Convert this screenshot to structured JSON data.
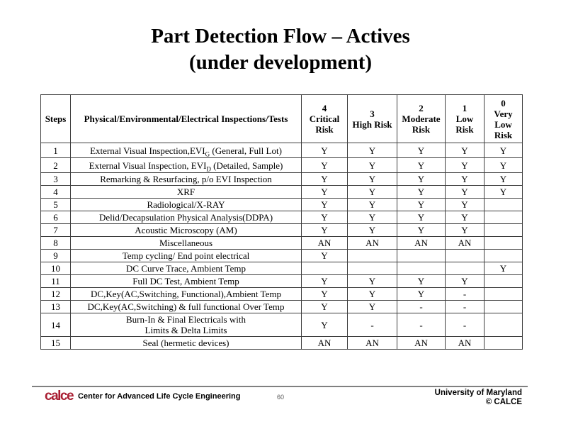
{
  "title": {
    "line1": "Part Detection Flow – Actives",
    "line2": "(under development)"
  },
  "colors": {
    "logo_red": "#A91E32",
    "table_border": "#3d3d3d",
    "footer_divider": "#808080"
  },
  "table": {
    "headers": {
      "steps": "Steps",
      "description": "Physical/Environmental/Electrical Inspections/Tests"
    },
    "risk_columns": [
      {
        "num": "4",
        "label": "Critical Risk"
      },
      {
        "num": "3",
        "label": "High Risk"
      },
      {
        "num": "2",
        "label": "Moderate Risk"
      },
      {
        "num": "1",
        "label": "Low Risk"
      },
      {
        "num": "0",
        "label": "Very Low Risk"
      }
    ],
    "rows": [
      {
        "step": "1",
        "pre": "External Visual Inspection,EVI",
        "sub": "G",
        "post": " (General, Full Lot)",
        "line2": "",
        "values": [
          "Y",
          "Y",
          "Y",
          "Y",
          "Y"
        ]
      },
      {
        "step": "2",
        "pre": "External Visual Inspection, EVI",
        "sub": "D",
        "post": " (Detailed, Sample)",
        "line2": "",
        "values": [
          "Y",
          "Y",
          "Y",
          "Y",
          "Y"
        ]
      },
      {
        "step": "3",
        "pre": "Remarking & Resurfacing, p/o EVI Inspection",
        "sub": "",
        "post": "",
        "line2": "",
        "values": [
          "Y",
          "Y",
          "Y",
          "Y",
          "Y"
        ]
      },
      {
        "step": "4",
        "pre": "XRF",
        "sub": "",
        "post": "",
        "line2": "",
        "values": [
          "Y",
          "Y",
          "Y",
          "Y",
          "Y"
        ]
      },
      {
        "step": "5",
        "pre": "Radiological/X-RAY",
        "sub": "",
        "post": "",
        "line2": "",
        "values": [
          "Y",
          "Y",
          "Y",
          "Y",
          ""
        ]
      },
      {
        "step": "6",
        "pre": "Delid/Decapsulation Physical Analysis(DDPA)",
        "sub": "",
        "post": "",
        "line2": "",
        "values": [
          "Y",
          "Y",
          "Y",
          "Y",
          ""
        ]
      },
      {
        "step": "7",
        "pre": "Acoustic Microscopy (AM)",
        "sub": "",
        "post": "",
        "line2": "",
        "values": [
          "Y",
          "Y",
          "Y",
          "Y",
          ""
        ]
      },
      {
        "step": "8",
        "pre": "Miscellaneous",
        "sub": "",
        "post": "",
        "line2": "",
        "values": [
          "AN",
          "AN",
          "AN",
          "AN",
          ""
        ]
      },
      {
        "step": "9",
        "pre": "Temp cycling/ End point electrical",
        "sub": "",
        "post": "",
        "line2": "",
        "values": [
          "Y",
          "",
          "",
          "",
          ""
        ]
      },
      {
        "step": "10",
        "pre": "DC Curve Trace, Ambient Temp",
        "sub": "",
        "post": "",
        "line2": "",
        "values": [
          "",
          "",
          "",
          "",
          "Y"
        ]
      },
      {
        "step": "11",
        "pre": "Full DC Test, Ambient Temp",
        "sub": "",
        "post": "",
        "line2": "",
        "values": [
          "Y",
          "Y",
          "Y",
          "Y",
          ""
        ]
      },
      {
        "step": "12",
        "pre": "DC,Key(AC,Switching, Functional),Ambient Temp",
        "sub": "",
        "post": "",
        "line2": "",
        "values": [
          "Y",
          "Y",
          "Y",
          "-",
          ""
        ]
      },
      {
        "step": "13",
        "pre": "DC,Key(AC,Switching) & full functional  Over Temp",
        "sub": "",
        "post": "",
        "line2": "",
        "values": [
          "Y",
          "Y",
          "-",
          "-",
          ""
        ]
      },
      {
        "step": "14",
        "pre": "Burn-In & Final Electricals with",
        "sub": "",
        "post": "",
        "line2": "Limits & Delta Limits",
        "values": [
          "Y",
          "-",
          "-",
          "-",
          ""
        ]
      },
      {
        "step": "15",
        "pre": "Seal (hermetic devices)",
        "sub": "",
        "post": "",
        "line2": "",
        "values": [
          "AN",
          "AN",
          "AN",
          "AN",
          ""
        ]
      }
    ]
  },
  "footer": {
    "logo_text": "calce",
    "left_text": "Center for Advanced Life Cycle Engineering",
    "page_number": "60",
    "right_line1": "University of Maryland",
    "right_line2": "© CALCE"
  }
}
